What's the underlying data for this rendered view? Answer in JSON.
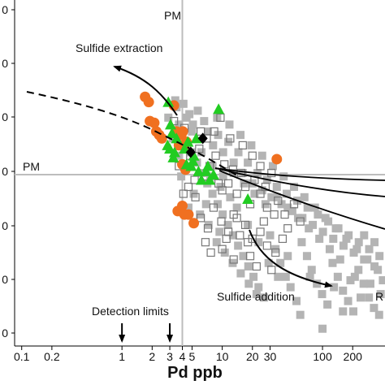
{
  "chart_data": {
    "type": "scatter",
    "xlabel": "Pd ppb",
    "x_scale": "log",
    "xlim": [
      0.085,
      420
    ],
    "ylim": [
      0,
      1
    ],
    "x_ticks": [
      {
        "value": 0.1,
        "label": "0.1"
      },
      {
        "value": 0.2,
        "label": "0.2"
      },
      {
        "value": 1,
        "label": "1"
      },
      {
        "value": 2,
        "label": "2"
      },
      {
        "value": 3,
        "label": "3"
      },
      {
        "value": 4,
        "label": "4"
      },
      {
        "value": 5,
        "label": "5"
      },
      {
        "value": 10,
        "label": "10"
      },
      {
        "value": 20,
        "label": "20"
      },
      {
        "value": 30,
        "label": "30"
      },
      {
        "value": 100,
        "label": "100"
      },
      {
        "value": 200,
        "label": "200"
      }
    ],
    "y_ticks_visible_digit": "0",
    "y_tick_count": 7,
    "reference_lines": {
      "pm_x": 4,
      "pm_label_x": "PM",
      "pm_label_y": "PM"
    },
    "annotations": {
      "sulfide_extraction": "Sulfide extraction",
      "sulfide_addition": "Sulfide addition",
      "detection_limits": "Detection limits",
      "right_cut": "R"
    },
    "detection_limit_x": [
      1,
      3
    ],
    "series": [
      {
        "marker": "circle",
        "color": "#f07020",
        "points": [
          [
            1.7,
            0.72
          ],
          [
            1.85,
            0.705
          ],
          [
            1.9,
            0.65
          ],
          [
            2.1,
            0.645
          ],
          [
            2.2,
            0.62
          ],
          [
            2.35,
            0.61
          ],
          [
            2.5,
            0.6
          ],
          [
            3.3,
            0.695
          ],
          [
            3.5,
            0.62
          ],
          [
            3.9,
            0.61
          ],
          [
            4.05,
            0.62
          ],
          [
            4.2,
            0.58
          ],
          [
            4.4,
            0.59
          ],
          [
            3.7,
            0.58
          ],
          [
            4.0,
            0.525
          ],
          [
            4.3,
            0.51
          ],
          [
            3.6,
            0.39
          ],
          [
            4.0,
            0.405
          ],
          [
            4.2,
            0.38
          ],
          [
            4.6,
            0.38
          ],
          [
            5.2,
            0.355
          ],
          [
            35,
            0.54
          ]
        ]
      },
      {
        "marker": "triangle",
        "color": "#22cc22",
        "points": [
          [
            2.9,
            0.705
          ],
          [
            3.05,
            0.64
          ],
          [
            3.15,
            0.615
          ],
          [
            2.85,
            0.58
          ],
          [
            3.0,
            0.57
          ],
          [
            3.35,
            0.56
          ],
          [
            3.5,
            0.6
          ],
          [
            3.25,
            0.545
          ],
          [
            4.55,
            0.59
          ],
          [
            4.2,
            0.57
          ],
          [
            5.2,
            0.55
          ],
          [
            5.5,
            0.6
          ],
          [
            5.1,
            0.535
          ],
          [
            4.9,
            0.52
          ],
          [
            4.4,
            0.525
          ],
          [
            5.8,
            0.505
          ],
          [
            6.2,
            0.48
          ],
          [
            6.9,
            0.505
          ],
          [
            7.5,
            0.48
          ],
          [
            7.2,
            0.52
          ],
          [
            8.2,
            0.495
          ],
          [
            9.2,
            0.685
          ],
          [
            18,
            0.425
          ]
        ]
      },
      {
        "marker": "diamond",
        "color": "#000000",
        "points": [
          [
            6.4,
            0.6
          ],
          [
            4.85,
            0.56
          ]
        ]
      },
      {
        "marker": "open-square",
        "color": "#777777",
        "points": [
          [
            3.3,
            0.65
          ],
          [
            4.2,
            0.63
          ],
          [
            4.8,
            0.55
          ],
          [
            5.9,
            0.57
          ],
          [
            6.8,
            0.49
          ],
          [
            7.5,
            0.52
          ],
          [
            8.6,
            0.55
          ],
          [
            9.2,
            0.47
          ],
          [
            10.5,
            0.525
          ],
          [
            11.5,
            0.47
          ],
          [
            12.8,
            0.51
          ],
          [
            14,
            0.44
          ],
          [
            15.5,
            0.5
          ],
          [
            17,
            0.46
          ],
          [
            19,
            0.41
          ],
          [
            21,
            0.48
          ],
          [
            24,
            0.44
          ],
          [
            28,
            0.4
          ],
          [
            31,
            0.5
          ],
          [
            36,
            0.42
          ],
          [
            42,
            0.38
          ],
          [
            52,
            0.41
          ],
          [
            60,
            0.36
          ],
          [
            5.4,
            0.43
          ],
          [
            6.1,
            0.37
          ],
          [
            7.2,
            0.34
          ],
          [
            8.2,
            0.4
          ],
          [
            9.8,
            0.36
          ],
          [
            11.5,
            0.33
          ],
          [
            13,
            0.38
          ],
          [
            15,
            0.32
          ],
          [
            17,
            0.35
          ],
          [
            20,
            0.31
          ],
          [
            24,
            0.33
          ],
          [
            28,
            0.29
          ],
          [
            34,
            0.27
          ],
          [
            40,
            0.31
          ],
          [
            6.8,
            0.3
          ],
          [
            10,
            0.28
          ],
          [
            13,
            0.25
          ],
          [
            19,
            0.26
          ],
          [
            22,
            0.23
          ],
          [
            31,
            0.22
          ],
          [
            4.6,
            0.46
          ],
          [
            5.3,
            0.48
          ],
          [
            12,
            0.6
          ],
          [
            9.6,
            0.66
          ],
          [
            7.0,
            0.6
          ],
          [
            6.1,
            0.62
          ],
          [
            8.3,
            0.62
          ],
          [
            16,
            0.58
          ],
          [
            24,
            0.52
          ],
          [
            20,
            0.55
          ],
          [
            27,
            0.46
          ],
          [
            33,
            0.38
          ],
          [
            45,
            0.34
          ],
          [
            14,
            0.37
          ],
          [
            18,
            0.3
          ],
          [
            3.7,
            0.52
          ],
          [
            4.1,
            0.44
          ],
          [
            10,
            0.45
          ],
          [
            26,
            0.36
          ],
          [
            7.7,
            0.27
          ],
          [
            11,
            0.31
          ]
        ]
      },
      {
        "marker": "square",
        "color": "#b4b4b4",
        "points": [
          [
            2.9,
            0.66
          ],
          [
            3.5,
            0.69
          ],
          [
            3.7,
            0.64
          ],
          [
            4.4,
            0.66
          ],
          [
            5.1,
            0.64
          ],
          [
            5.7,
            0.68
          ],
          [
            6.6,
            0.65
          ],
          [
            7.2,
            0.62
          ],
          [
            8.1,
            0.58
          ],
          [
            9.1,
            0.61
          ],
          [
            10.2,
            0.56
          ],
          [
            11.5,
            0.59
          ],
          [
            13,
            0.53
          ],
          [
            14.5,
            0.56
          ],
          [
            16,
            0.5
          ],
          [
            18,
            0.53
          ],
          [
            20,
            0.47
          ],
          [
            22.5,
            0.5
          ],
          [
            25,
            0.45
          ],
          [
            28,
            0.48
          ],
          [
            31,
            0.43
          ],
          [
            35,
            0.46
          ],
          [
            39,
            0.41
          ],
          [
            44,
            0.44
          ],
          [
            50,
            0.39
          ],
          [
            56,
            0.42
          ],
          [
            63,
            0.37
          ],
          [
            71,
            0.4
          ],
          [
            80,
            0.35
          ],
          [
            90,
            0.38
          ],
          [
            101,
            0.33
          ],
          [
            114,
            0.36
          ],
          [
            128,
            0.31
          ],
          [
            144,
            0.34
          ],
          [
            162,
            0.29
          ],
          [
            182,
            0.32
          ],
          [
            205,
            0.27
          ],
          [
            230,
            0.3
          ],
          [
            260,
            0.25
          ],
          [
            292,
            0.28
          ],
          [
            330,
            0.23
          ],
          [
            370,
            0.26
          ],
          [
            4.3,
            0.59
          ],
          [
            4.9,
            0.56
          ],
          [
            5.6,
            0.53
          ],
          [
            6.3,
            0.5
          ],
          [
            7.1,
            0.47
          ],
          [
            8,
            0.44
          ],
          [
            9,
            0.41
          ],
          [
            10.1,
            0.38
          ],
          [
            11.4,
            0.35
          ],
          [
            12.8,
            0.32
          ],
          [
            14.4,
            0.29
          ],
          [
            16.2,
            0.26
          ],
          [
            18.2,
            0.23
          ],
          [
            20.5,
            0.2
          ],
          [
            23,
            0.17
          ],
          [
            26,
            0.14
          ],
          [
            30,
            0.32
          ],
          [
            34,
            0.28
          ],
          [
            38,
            0.24
          ],
          [
            43,
            0.2
          ],
          [
            48,
            0.17
          ],
          [
            55,
            0.13
          ],
          [
            62,
            0.3
          ],
          [
            70,
            0.26
          ],
          [
            78,
            0.22
          ],
          [
            88,
            0.18
          ],
          [
            99,
            0.15
          ],
          [
            112,
            0.12
          ],
          [
            126,
            0.24
          ],
          [
            142,
            0.2
          ],
          [
            160,
            0.16
          ],
          [
            180,
            0.13
          ],
          [
            203,
            0.1
          ],
          [
            228,
            0.22
          ],
          [
            257,
            0.18
          ],
          [
            290,
            0.14
          ],
          [
            326,
            0.11
          ],
          [
            367,
            0.09
          ],
          [
            6,
            0.38
          ],
          [
            7.3,
            0.35
          ],
          [
            8.8,
            0.3
          ],
          [
            10.6,
            0.27
          ],
          [
            12.7,
            0.24
          ],
          [
            15.3,
            0.21
          ],
          [
            18.4,
            0.18
          ],
          [
            22,
            0.15
          ],
          [
            3.9,
            0.49
          ],
          [
            5.2,
            0.44
          ],
          [
            6.9,
            0.41
          ],
          [
            9.4,
            0.33
          ],
          [
            4.6,
            0.4
          ],
          [
            3.6,
            0.55
          ],
          [
            3.2,
            0.6
          ],
          [
            8.9,
            0.66
          ],
          [
            11.8,
            0.64
          ],
          [
            15.2,
            0.61
          ],
          [
            19.5,
            0.58
          ],
          [
            25,
            0.55
          ],
          [
            32,
            0.52
          ],
          [
            41,
            0.49
          ],
          [
            52,
            0.46
          ],
          [
            66,
            0.43
          ],
          [
            84,
            0.4
          ],
          [
            107,
            0.37
          ],
          [
            136,
            0.34
          ],
          [
            173,
            0.31
          ],
          [
            220,
            0.28
          ],
          [
            280,
            0.25
          ],
          [
            356,
            0.22
          ],
          [
            400,
            0.19
          ],
          [
            380,
            0.15
          ],
          [
            300,
            0.18
          ],
          [
            240,
            0.14
          ],
          [
            190,
            0.19
          ],
          [
            150,
            0.25
          ],
          [
            118,
            0.28
          ],
          [
            93,
            0.31
          ],
          [
            73,
            0.34
          ],
          [
            57,
            0.37
          ],
          [
            45,
            0.4
          ],
          [
            35,
            0.43
          ],
          [
            27,
            0.41
          ],
          [
            21,
            0.44
          ],
          [
            16.5,
            0.47
          ],
          [
            13,
            0.5
          ],
          [
            10.2,
            0.49
          ],
          [
            8,
            0.52
          ],
          [
            6.2,
            0.56
          ],
          [
            5,
            0.62
          ],
          [
            4.1,
            0.7
          ],
          [
            4.7,
            0.67
          ],
          [
            3.4,
            0.71
          ],
          [
            60,
            0.09
          ],
          [
            100,
            0.05
          ],
          [
            75,
            0.2
          ],
          [
            130,
            0.17
          ],
          [
            160,
            0.1
          ],
          [
            210,
            0.2
          ],
          [
            260,
            0.32
          ],
          [
            330,
            0.3
          ],
          [
            45,
            0.26
          ],
          [
            36,
            0.2
          ],
          [
            29,
            0.24
          ],
          [
            23,
            0.3
          ],
          [
            18,
            0.35
          ],
          [
            14,
            0.4
          ],
          [
            12,
            0.43
          ],
          [
            9.6,
            0.46
          ],
          [
            7.6,
            0.49
          ]
        ]
      }
    ]
  }
}
